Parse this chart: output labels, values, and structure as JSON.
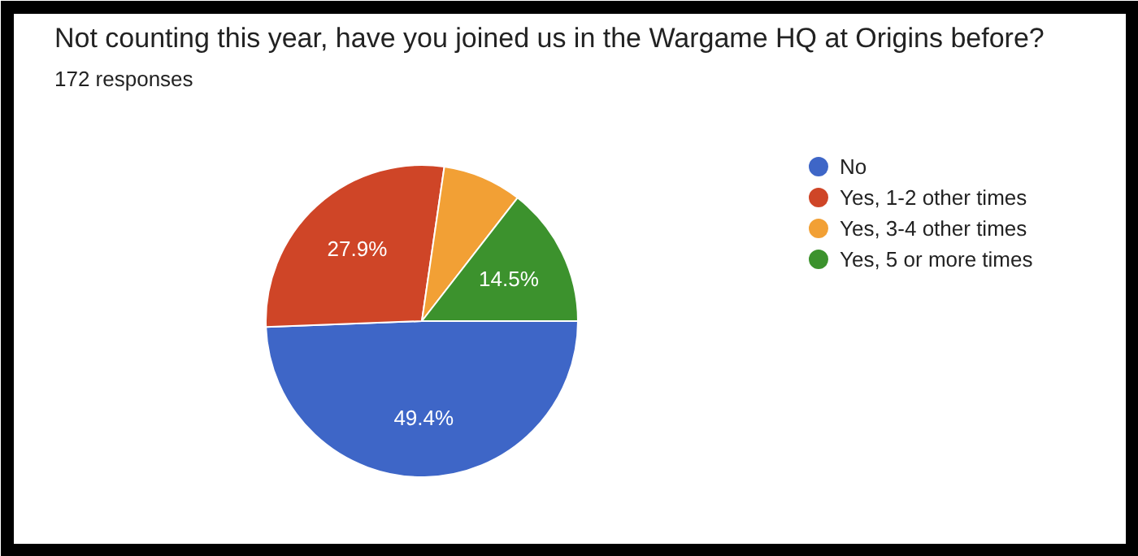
{
  "chart_data": {
    "type": "pie",
    "title": "Not counting this year, have you joined us in the Wargame HQ at Origins before?",
    "subtitle": "172 responses",
    "categories": [
      "No",
      "Yes, 1-2 other times",
      "Yes, 3-4 other times",
      "Yes, 5 or more times"
    ],
    "values": [
      49.4,
      27.9,
      8.2,
      14.5
    ],
    "value_labels": [
      "49.4%",
      "27.9%",
      null,
      "14.5%"
    ],
    "colors": [
      "#3e66c7",
      "#cf4527",
      "#f2a035",
      "#3c922d"
    ],
    "legend": "right"
  }
}
